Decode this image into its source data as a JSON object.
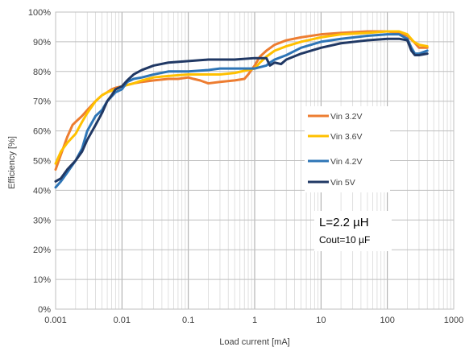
{
  "chart_data": {
    "type": "line",
    "xlabel": "Load current [mA]",
    "ylabel": "Efficiency [%]",
    "x_scale": "log",
    "xlim": [
      0.001,
      1000
    ],
    "ylim": [
      0,
      100
    ],
    "x_tick_labels": [
      "0.001",
      "0.01",
      "0.1",
      "1",
      "10",
      "100",
      "1000"
    ],
    "y_tick_labels": [
      "0%",
      "10%",
      "20%",
      "30%",
      "40%",
      "50%",
      "60%",
      "70%",
      "80%",
      "90%",
      "100%"
    ],
    "grid": true,
    "legend_position": "right",
    "annotations": [
      "L=2.2 µH",
      "Cout=10 µF"
    ],
    "series": [
      {
        "name": "Vin 3.2V",
        "color": "#ED7D31",
        "x": [
          0.001,
          0.0012,
          0.0015,
          0.0018,
          0.002,
          0.0025,
          0.003,
          0.004,
          0.005,
          0.006,
          0.007,
          0.008,
          0.01,
          0.012,
          0.015,
          0.02,
          0.03,
          0.05,
          0.07,
          0.1,
          0.12,
          0.15,
          0.2,
          0.3,
          0.5,
          0.7,
          0.8,
          1,
          1.2,
          1.5,
          2,
          3,
          5,
          10,
          20,
          50,
          100,
          150,
          200,
          250,
          300,
          400
        ],
        "y": [
          47,
          52,
          58,
          62,
          63,
          65,
          67,
          70,
          72,
          73,
          74,
          74.5,
          75,
          75.5,
          76,
          76.5,
          77,
          77.5,
          77.5,
          78,
          77.5,
          77,
          76,
          76.5,
          77,
          77.5,
          79,
          82,
          85,
          87,
          89,
          90.5,
          91.5,
          92.5,
          93,
          93.5,
          93.5,
          93,
          92,
          90,
          88,
          88
        ]
      },
      {
        "name": "Vin 3.6V",
        "color": "#FFC000",
        "x": [
          0.001,
          0.0012,
          0.0015,
          0.002,
          0.0025,
          0.003,
          0.004,
          0.005,
          0.006,
          0.008,
          0.01,
          0.015,
          0.02,
          0.03,
          0.05,
          0.1,
          0.2,
          0.3,
          0.5,
          1,
          1.2,
          1.5,
          2,
          3,
          5,
          10,
          20,
          50,
          100,
          150,
          200,
          250,
          300,
          400
        ],
        "y": [
          49,
          53,
          56,
          59,
          63,
          66,
          70,
          72,
          73,
          74,
          75,
          76,
          77,
          78,
          78.5,
          79,
          79,
          79,
          79.5,
          81,
          83,
          85,
          87,
          88.5,
          90,
          91.5,
          92.5,
          93,
          93.5,
          93.5,
          92.5,
          90,
          89,
          88.5
        ]
      },
      {
        "name": "Vin 4.2V",
        "color": "#2E75B6",
        "x": [
          0.001,
          0.0012,
          0.0015,
          0.002,
          0.0025,
          0.003,
          0.004,
          0.005,
          0.006,
          0.008,
          0.01,
          0.012,
          0.015,
          0.02,
          0.03,
          0.05,
          0.1,
          0.2,
          0.3,
          0.5,
          1,
          1.5,
          1.7,
          2,
          3,
          5,
          10,
          20,
          50,
          100,
          150,
          200,
          230,
          260,
          300,
          400
        ],
        "y": [
          41,
          43,
          46,
          50,
          54,
          60,
          65,
          67,
          70,
          73,
          74,
          76.5,
          77.5,
          78,
          79,
          80,
          80,
          80.5,
          81,
          81,
          81,
          82,
          83,
          84,
          85.5,
          88,
          90,
          91,
          92,
          92.5,
          92.5,
          91,
          88,
          86,
          86,
          87
        ]
      },
      {
        "name": "Vin 5V",
        "color": "#203864",
        "x": [
          0.001,
          0.0012,
          0.0015,
          0.002,
          0.0025,
          0.003,
          0.004,
          0.005,
          0.006,
          0.007,
          0.008,
          0.01,
          0.012,
          0.015,
          0.02,
          0.03,
          0.05,
          0.1,
          0.2,
          0.5,
          1,
          1.5,
          1.7,
          2,
          2.5,
          3,
          5,
          10,
          20,
          50,
          100,
          150,
          200,
          230,
          260,
          300,
          400
        ],
        "y": [
          43,
          44,
          47,
          50,
          53,
          57,
          62,
          66,
          70,
          72,
          74,
          75,
          77,
          79,
          80.5,
          82,
          83,
          83.5,
          84,
          84,
          84.5,
          84.5,
          82,
          83,
          82.5,
          84,
          86,
          88,
          89.5,
          90.5,
          91,
          91,
          90.5,
          87,
          85.5,
          85.5,
          86
        ]
      }
    ]
  }
}
